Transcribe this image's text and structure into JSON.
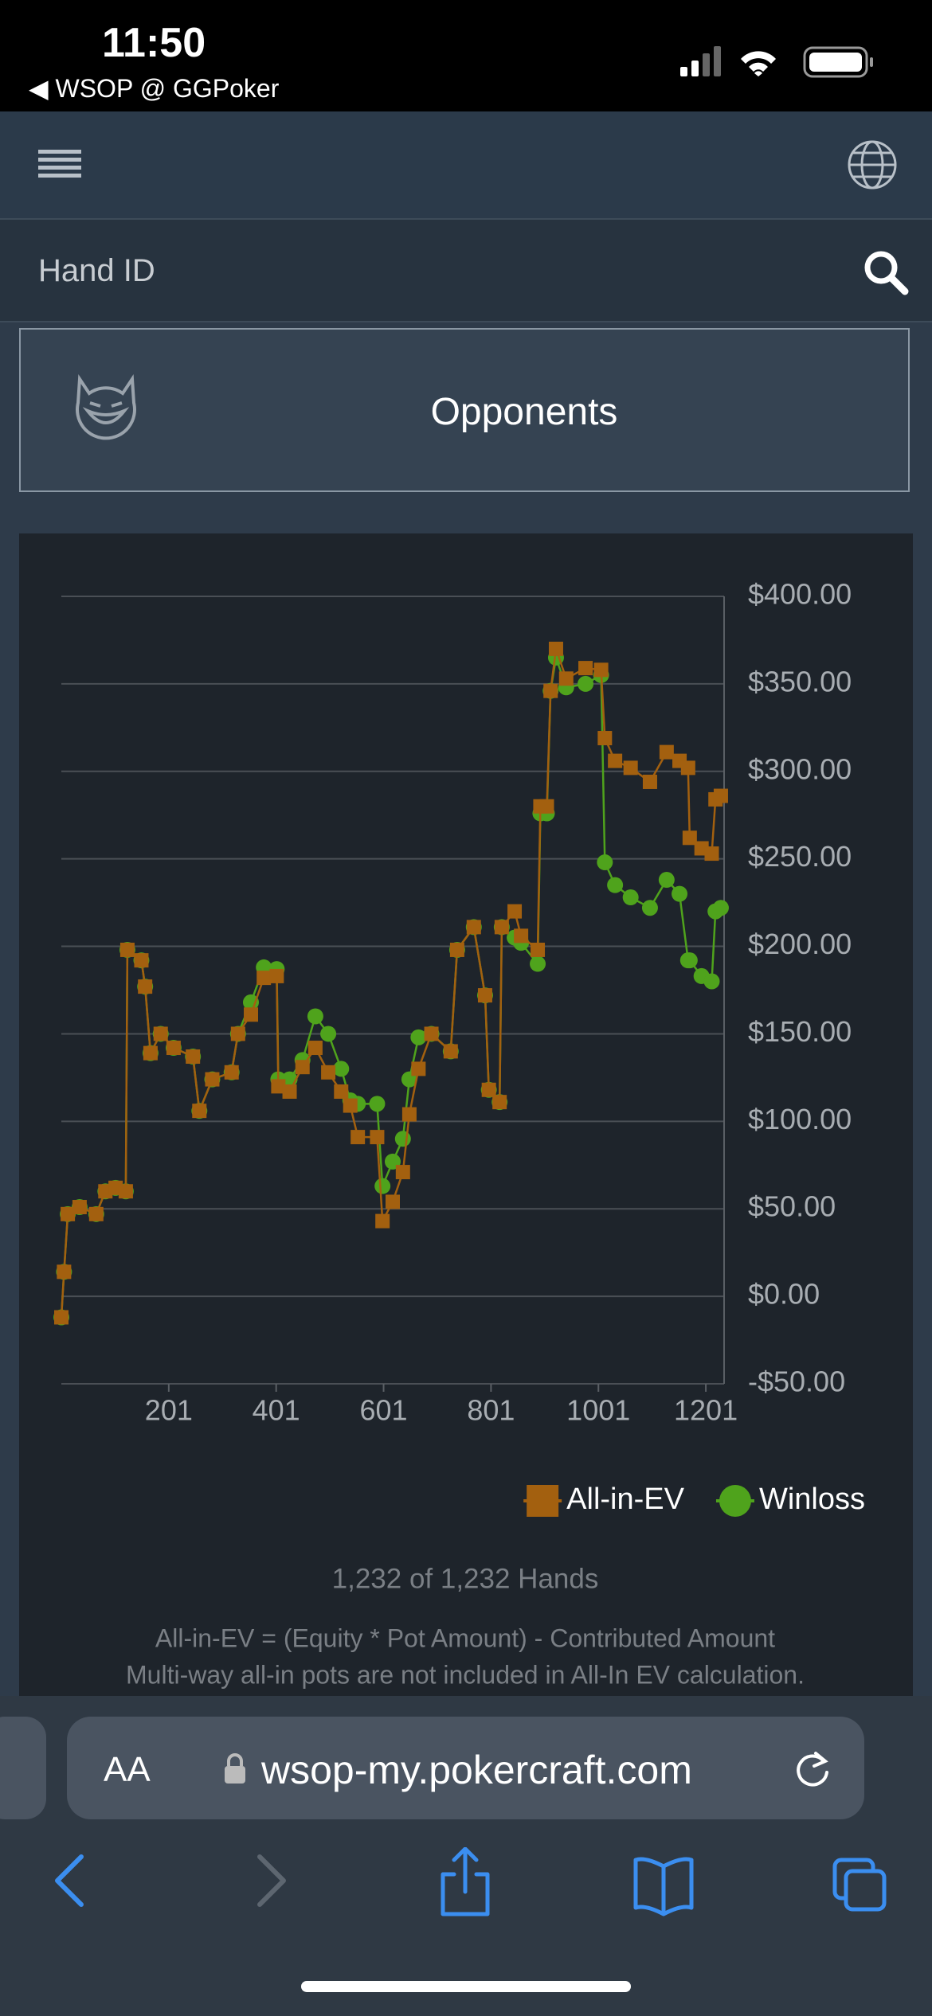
{
  "status_bar": {
    "time": "11:50",
    "back_label": "◀ WSOP @ GGPoker"
  },
  "search": {
    "placeholder": "Hand ID"
  },
  "card": {
    "title": "Opponents"
  },
  "chart_data": {
    "type": "line",
    "x": [
      1,
      6,
      13,
      35,
      66,
      83,
      102,
      121,
      124,
      150,
      157,
      167,
      186,
      210,
      246,
      258,
      282,
      318,
      330,
      354,
      378,
      402,
      405,
      426,
      450,
      474,
      498,
      522,
      539,
      553,
      589,
      599,
      618,
      637,
      649,
      666,
      690,
      726,
      738,
      769,
      790,
      797,
      817,
      821,
      845,
      857,
      888,
      893,
      905,
      912,
      922,
      941,
      977,
      1006,
      1013,
      1032,
      1061,
      1097,
      1128,
      1152,
      1168,
      1171,
      1193,
      1212,
      1219,
      1229
    ],
    "series": [
      {
        "name": "All-in-EV",
        "color": "#a3600f",
        "marker": "square",
        "values": [
          -12,
          14,
          47,
          51,
          47,
          60,
          62,
          60,
          198,
          192,
          177,
          139,
          150,
          142,
          137,
          106,
          124,
          128,
          150,
          161,
          182,
          183,
          120,
          117,
          131,
          142,
          128,
          117,
          109,
          91,
          91,
          43,
          54,
          71,
          104,
          130,
          150,
          140,
          198,
          211,
          172,
          118,
          111,
          211,
          220,
          206,
          198,
          280,
          280,
          346,
          370,
          353,
          359,
          358,
          319,
          306,
          302,
          294,
          311,
          306,
          302,
          262,
          256,
          253,
          284,
          286
        ]
      },
      {
        "name": "Winloss",
        "color": "#4fa31c",
        "marker": "circle",
        "values": [
          -12,
          14,
          47,
          51,
          47,
          60,
          62,
          60,
          198,
          192,
          177,
          139,
          150,
          142,
          137,
          106,
          124,
          128,
          150,
          168,
          188,
          187,
          124,
          124,
          135,
          160,
          150,
          130,
          112,
          110,
          110,
          63,
          77,
          90,
          124,
          148,
          150,
          140,
          198,
          211,
          172,
          118,
          111,
          211,
          205,
          202,
          190,
          276,
          276,
          346,
          365,
          348,
          350,
          355,
          248,
          235,
          228,
          222,
          238,
          230,
          192,
          192,
          183,
          180,
          220,
          222
        ]
      }
    ],
    "xlim": [
      1,
      1235
    ],
    "xticks": [
      201,
      401,
      601,
      801,
      1001,
      1201
    ],
    "ylim": [
      -50,
      400
    ],
    "yticks": [
      {
        "value": -50,
        "label": "-$50.00"
      },
      {
        "value": 0,
        "label": "$0.00"
      },
      {
        "value": 50,
        "label": "$50.00"
      },
      {
        "value": 100,
        "label": "$100.00"
      },
      {
        "value": 150,
        "label": "$150.00"
      },
      {
        "value": 200,
        "label": "$200.00"
      },
      {
        "value": 250,
        "label": "$250.00"
      },
      {
        "value": 300,
        "label": "$300.00"
      },
      {
        "value": 350,
        "label": "$350.00"
      },
      {
        "value": 400,
        "label": "$400.00"
      }
    ],
    "grid": true,
    "legend": "bottom-right"
  },
  "hands_count": "1,232 of 1,232 Hands",
  "footnotes": [
    "All-in-EV = (Equity * Pot Amount) - Contributed Amount",
    "Multi-way all-in pots are not included in All-In EV calculation."
  ],
  "browser": {
    "text_size": "AA",
    "url": "wsop-my.pokercraft.com"
  }
}
